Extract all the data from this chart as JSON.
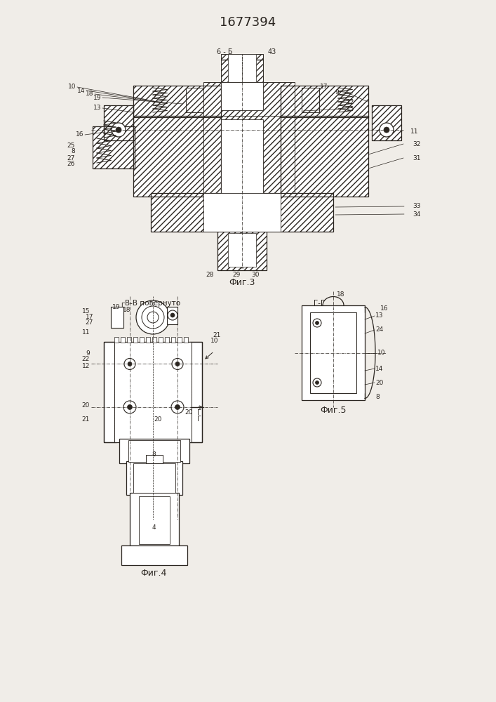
{
  "title": "1677394",
  "bg_color": "#f0ede8",
  "line_color": "#2a2520",
  "fig3_caption": "Фиг.3",
  "fig4_caption": "Фиг.4",
  "fig5_caption": "Фиг.5",
  "fig_width": 7.07,
  "fig_height": 10.0
}
